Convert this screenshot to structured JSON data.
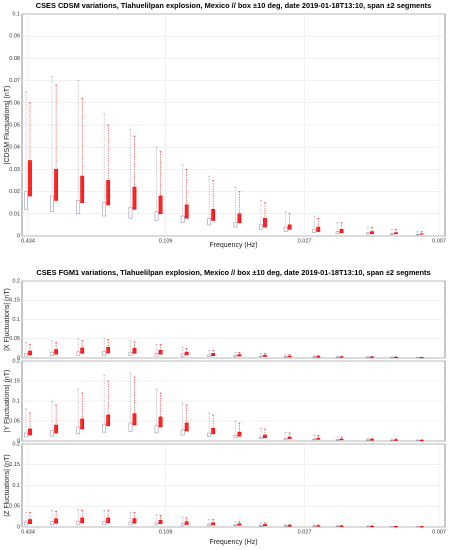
{
  "chart_data": [
    {
      "type": "box",
      "title": "CSES CDSM variations, Tlahuelilpan explosion, Mexico // box ±10 deg, date 2019-01-18T13:10, span ±2 segments",
      "ylabel": "|CDSM Fluctuations| (nT)",
      "xlabel": "Frequency (Hz)",
      "xscale": "log",
      "grid": true,
      "xlim": [
        0.434,
        0.007
      ],
      "xticks": [
        0.434,
        0.109,
        0.027,
        0.007
      ],
      "ylim": [
        0,
        0.1
      ],
      "yticks": [
        0,
        0.01,
        0.02,
        0.03,
        0.04,
        0.05,
        0.06,
        0.07,
        0.08,
        0.09,
        0.1
      ],
      "x": [
        0.434,
        0.334,
        0.257,
        0.198,
        0.152,
        0.117,
        0.09,
        0.069,
        0.053,
        0.041,
        0.032,
        0.024,
        0.019,
        0.014,
        0.011,
        0.0085
      ],
      "series": [
        {
          "color": "#9a9ab8",
          "q1": [
            0.012,
            0.011,
            0.01,
            0.009,
            0.008,
            0.007,
            0.006,
            0.005,
            0.004,
            0.003,
            0.002,
            0.0015,
            0.001,
            0.0008,
            0.0006,
            0.0005
          ],
          "q3": [
            0.02,
            0.018,
            0.016,
            0.015,
            0.013,
            0.011,
            0.009,
            0.008,
            0.006,
            0.005,
            0.004,
            0.003,
            0.002,
            0.0015,
            0.001,
            0.0008
          ],
          "high": [
            0.065,
            0.072,
            0.07,
            0.055,
            0.048,
            0.04,
            0.032,
            0.027,
            0.022,
            0.016,
            0.011,
            0.009,
            0.006,
            0.004,
            0.003,
            0.002
          ]
        },
        {
          "color": "#ff0000",
          "q1": [
            0.018,
            0.016,
            0.015,
            0.014,
            0.012,
            0.01,
            0.008,
            0.007,
            0.006,
            0.004,
            0.003,
            0.002,
            0.0015,
            0.001,
            0.001,
            0.0008
          ],
          "q3": [
            0.034,
            0.03,
            0.027,
            0.025,
            0.022,
            0.018,
            0.014,
            0.012,
            0.01,
            0.008,
            0.005,
            0.004,
            0.003,
            0.002,
            0.0015,
            0.001
          ],
          "high": [
            0.06,
            0.068,
            0.062,
            0.05,
            0.045,
            0.038,
            0.03,
            0.025,
            0.02,
            0.015,
            0.01,
            0.008,
            0.006,
            0.004,
            0.003,
            0.002
          ]
        }
      ]
    },
    {
      "type": "box",
      "title": "CSES FGM1 variations, Tlahuelilpan explosion, Mexico // box ±10 deg, date 2019-01-18T13:10, span ±2 segments",
      "ylabel": "|X Fluctuations| (nT)",
      "xscale": "log",
      "grid": true,
      "xlim": [
        0.434,
        0.007
      ],
      "ylim": [
        0,
        0.2
      ],
      "yticks": [
        0,
        0.05,
        0.1,
        0.15,
        0.2
      ],
      "x": [
        0.434,
        0.334,
        0.257,
        0.198,
        0.152,
        0.117,
        0.09,
        0.069,
        0.053,
        0.041,
        0.032,
        0.024,
        0.019,
        0.014,
        0.011,
        0.0085
      ],
      "series": [
        {
          "color": "#9a9ab8",
          "q1": [
            0.005,
            0.006,
            0.007,
            0.007,
            0.006,
            0.005,
            0.004,
            0.004,
            0.003,
            0.003,
            0.002,
            0.0015,
            0.0012,
            0.001,
            0.0008,
            0.0006
          ],
          "q3": [
            0.012,
            0.014,
            0.016,
            0.017,
            0.015,
            0.012,
            0.01,
            0.008,
            0.006,
            0.005,
            0.004,
            0.003,
            0.0025,
            0.002,
            0.0015,
            0.001
          ],
          "high": [
            0.04,
            0.045,
            0.05,
            0.052,
            0.045,
            0.035,
            0.028,
            0.02,
            0.015,
            0.012,
            0.009,
            0.007,
            0.005,
            0.004,
            0.003,
            0.002
          ]
        },
        {
          "color": "#ff0000",
          "q1": [
            0.008,
            0.01,
            0.012,
            0.013,
            0.012,
            0.01,
            0.008,
            0.006,
            0.005,
            0.004,
            0.003,
            0.002,
            0.002,
            0.0015,
            0.001,
            0.001
          ],
          "q3": [
            0.018,
            0.022,
            0.026,
            0.028,
            0.025,
            0.02,
            0.015,
            0.012,
            0.009,
            0.007,
            0.005,
            0.004,
            0.003,
            0.0025,
            0.002,
            0.0015
          ],
          "high": [
            0.035,
            0.04,
            0.045,
            0.048,
            0.042,
            0.035,
            0.025,
            0.02,
            0.015,
            0.012,
            0.009,
            0.007,
            0.005,
            0.004,
            0.003,
            0.002
          ]
        }
      ]
    },
    {
      "type": "box",
      "ylabel": "|Y Fluctuations| (nT)",
      "xscale": "log",
      "grid": true,
      "xlim": [
        0.434,
        0.007
      ],
      "ylim": [
        0,
        0.2
      ],
      "yticks": [
        0,
        0.05,
        0.1,
        0.15,
        0.2
      ],
      "x": [
        0.434,
        0.334,
        0.257,
        0.198,
        0.152,
        0.117,
        0.09,
        0.069,
        0.053,
        0.041,
        0.032,
        0.024,
        0.019,
        0.014,
        0.011,
        0.0085
      ],
      "series": [
        {
          "color": "#9a9ab8",
          "q1": [
            0.01,
            0.012,
            0.018,
            0.022,
            0.024,
            0.02,
            0.015,
            0.011,
            0.008,
            0.006,
            0.004,
            0.003,
            0.002,
            0.0015,
            0.001,
            0.0008
          ],
          "q3": [
            0.02,
            0.026,
            0.035,
            0.042,
            0.045,
            0.038,
            0.028,
            0.02,
            0.014,
            0.01,
            0.007,
            0.005,
            0.004,
            0.003,
            0.002,
            0.0015
          ],
          "high": [
            0.08,
            0.1,
            0.13,
            0.165,
            0.17,
            0.13,
            0.095,
            0.07,
            0.05,
            0.032,
            0.022,
            0.015,
            0.01,
            0.007,
            0.005,
            0.003
          ]
        },
        {
          "color": "#ff0000",
          "q1": [
            0.015,
            0.02,
            0.03,
            0.038,
            0.04,
            0.035,
            0.025,
            0.018,
            0.012,
            0.008,
            0.006,
            0.004,
            0.003,
            0.002,
            0.0015,
            0.001
          ],
          "q3": [
            0.03,
            0.04,
            0.055,
            0.065,
            0.068,
            0.06,
            0.045,
            0.032,
            0.022,
            0.015,
            0.01,
            0.007,
            0.005,
            0.004,
            0.003,
            0.002
          ],
          "high": [
            0.07,
            0.09,
            0.12,
            0.15,
            0.16,
            0.12,
            0.09,
            0.065,
            0.045,
            0.03,
            0.02,
            0.014,
            0.01,
            0.007,
            0.005,
            0.003
          ]
        }
      ]
    },
    {
      "type": "box",
      "ylabel": "|Z Fluctuations| (nT)",
      "xlabel": "Frequency (Hz)",
      "xscale": "log",
      "grid": true,
      "xlim": [
        0.434,
        0.007
      ],
      "xticks": [
        0.434,
        0.109,
        0.027,
        0.007
      ],
      "ylim": [
        0,
        0.2
      ],
      "yticks": [
        0,
        0.05,
        0.1,
        0.15,
        0.2
      ],
      "x": [
        0.434,
        0.334,
        0.257,
        0.198,
        0.152,
        0.117,
        0.09,
        0.069,
        0.053,
        0.041,
        0.032,
        0.024,
        0.019,
        0.014,
        0.011,
        0.0085
      ],
      "series": [
        {
          "color": "#9a9ab8",
          "q1": [
            0.005,
            0.006,
            0.006,
            0.006,
            0.005,
            0.005,
            0.004,
            0.003,
            0.003,
            0.002,
            0.002,
            0.0015,
            0.001,
            0.001,
            0.0007,
            0.0005
          ],
          "q3": [
            0.012,
            0.013,
            0.014,
            0.014,
            0.012,
            0.01,
            0.008,
            0.007,
            0.005,
            0.004,
            0.003,
            0.0025,
            0.002,
            0.0015,
            0.001,
            0.0008
          ],
          "high": [
            0.035,
            0.04,
            0.042,
            0.04,
            0.035,
            0.03,
            0.024,
            0.018,
            0.013,
            0.01,
            0.007,
            0.005,
            0.004,
            0.003,
            0.002,
            0.0015
          ]
        },
        {
          "color": "#ff0000",
          "q1": [
            0.008,
            0.009,
            0.01,
            0.01,
            0.009,
            0.008,
            0.006,
            0.005,
            0.004,
            0.003,
            0.002,
            0.002,
            0.0015,
            0.001,
            0.001,
            0.0008
          ],
          "q3": [
            0.018,
            0.02,
            0.022,
            0.022,
            0.02,
            0.016,
            0.013,
            0.01,
            0.008,
            0.006,
            0.004,
            0.003,
            0.0025,
            0.002,
            0.0015,
            0.001
          ],
          "high": [
            0.035,
            0.038,
            0.04,
            0.04,
            0.035,
            0.028,
            0.022,
            0.018,
            0.013,
            0.01,
            0.007,
            0.005,
            0.004,
            0.003,
            0.002,
            0.0015
          ]
        }
      ]
    }
  ]
}
